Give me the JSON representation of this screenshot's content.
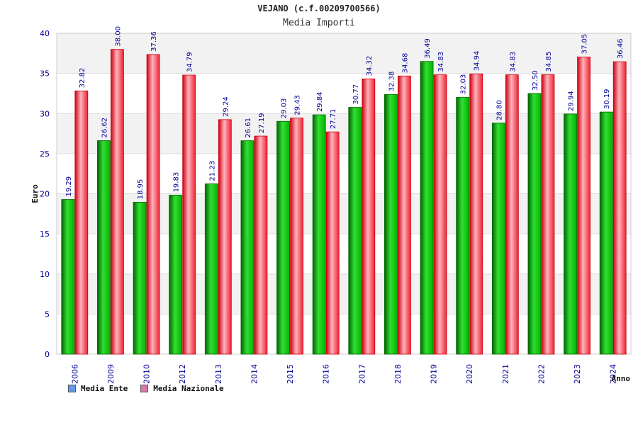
{
  "colors": {
    "ente_dark": "#006600",
    "ente_light": "#33dd33",
    "ente_mid": "#00b400",
    "naz_dark": "#cc0011",
    "naz_light": "#ffb3bb",
    "naz_mid": "#ee2233",
    "axis_text": "#000099",
    "band": "#f2f2f2",
    "grid": "#dddddd",
    "legend_ente": "#6699ee",
    "legend_naz": "#dd77aa"
  },
  "chart_data": {
    "type": "bar",
    "title": "VEJANO (c.f.00209700566)",
    "subtitle": "Media Importi",
    "ylabel": "Euro",
    "xlabel": "Anno",
    "ylim": [
      0,
      40
    ],
    "yticks": [
      "0",
      "5",
      "10",
      "15",
      "20",
      "25",
      "30",
      "35",
      "40"
    ],
    "categories": [
      "2006",
      "2009",
      "2010",
      "2012",
      "2013",
      "2014",
      "2015",
      "2016",
      "2017",
      "2018",
      "2019",
      "2020",
      "2021",
      "2022",
      "2023",
      "2024"
    ],
    "series": [
      {
        "name": "Media Ente",
        "values": [
          19.29,
          26.62,
          18.95,
          19.83,
          21.23,
          26.61,
          29.03,
          29.84,
          30.77,
          32.38,
          36.49,
          32.03,
          28.8,
          32.5,
          29.94,
          30.19
        ],
        "labels": [
          "19.29",
          "26.62",
          "18.95",
          "19.83",
          "21.23",
          "26.61",
          "29.03",
          "29.84",
          "30.77",
          "32.38",
          "36.49",
          "32.03",
          "28.80",
          "32.50",
          "29.94",
          "30.19"
        ]
      },
      {
        "name": "Media Nazionale",
        "values": [
          32.82,
          38.0,
          37.36,
          34.79,
          29.24,
          27.19,
          29.43,
          27.71,
          34.32,
          34.68,
          34.83,
          34.94,
          34.83,
          34.85,
          37.05,
          36.46
        ],
        "labels": [
          "32.82",
          "38.00",
          "37.36",
          "34.79",
          "29.24",
          "27.19",
          "29.43",
          "27.71",
          "34.32",
          "34.68",
          "34.83",
          "34.94",
          "34.83",
          "34.85",
          "37.05",
          "36.46"
        ]
      }
    ],
    "legend": [
      "Media Ente",
      "Media Nazionale"
    ],
    "legend_position": "bottom-left"
  }
}
